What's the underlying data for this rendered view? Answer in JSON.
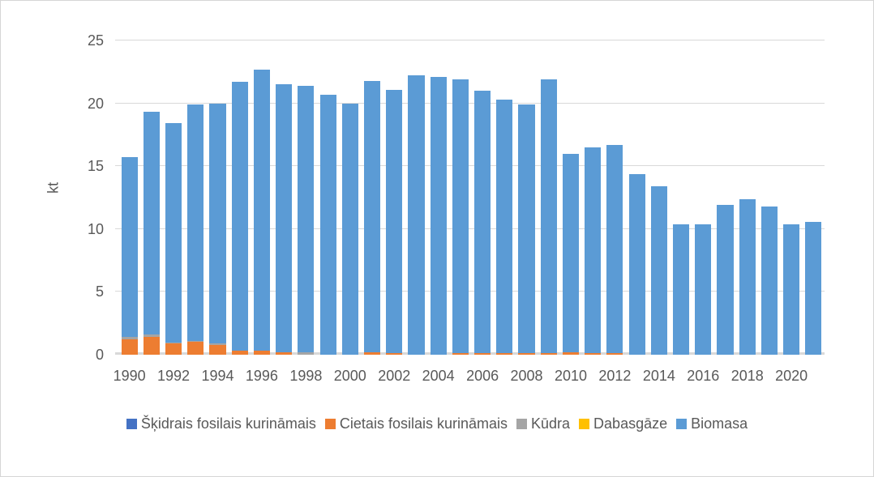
{
  "chart_data": {
    "type": "bar",
    "stacked": true,
    "title": "",
    "xlabel": "",
    "ylabel": "kt",
    "ylim": [
      0,
      25
    ],
    "yticks": [
      0,
      5,
      10,
      15,
      20,
      25
    ],
    "grid": true,
    "legend_position": "bottom",
    "x": [
      1990,
      1991,
      1992,
      1993,
      1994,
      1995,
      1996,
      1997,
      1998,
      1999,
      2000,
      2001,
      2002,
      2003,
      2004,
      2005,
      2006,
      2007,
      2008,
      2009,
      2010,
      2011,
      2012,
      2013,
      2014,
      2015,
      2016,
      2017,
      2018,
      2019,
      2020,
      2021
    ],
    "xtick_shown": [
      "1990",
      "1992",
      "1994",
      "1996",
      "1998",
      "2000",
      "2002",
      "2004",
      "2006",
      "2008",
      "2010",
      "2012",
      "2014",
      "2016",
      "2018",
      "2020"
    ],
    "series": [
      {
        "name": "Šķidrais fosilais kurināmais",
        "color": "#4472C4",
        "values": [
          0,
          0,
          0,
          0,
          0,
          0,
          0,
          0,
          0,
          0,
          0,
          0,
          0,
          0,
          0,
          0,
          0,
          0,
          0,
          0,
          0,
          0,
          0,
          0,
          0,
          0,
          0,
          0,
          0,
          0,
          0,
          0
        ]
      },
      {
        "name": "Cietais fosilais kurināmais",
        "color": "#ED7D31",
        "values": [
          1.2,
          1.4,
          0.9,
          1.0,
          0.8,
          0.3,
          0.3,
          0.2,
          0,
          0,
          0,
          0.2,
          0.1,
          0,
          0,
          0.1,
          0.1,
          0.1,
          0.1,
          0.1,
          0.2,
          0.1,
          0.1,
          0,
          0,
          0,
          0,
          0,
          0,
          0,
          0,
          0
        ]
      },
      {
        "name": "Kūdra",
        "color": "#A5A5A5",
        "values": [
          0.2,
          0.2,
          0.1,
          0.1,
          0.1,
          0,
          0,
          0,
          0.2,
          0,
          0,
          0,
          0,
          0,
          0,
          0,
          0,
          0,
          0,
          0,
          0,
          0,
          0,
          0,
          0,
          0,
          0,
          0,
          0,
          0,
          0,
          0
        ]
      },
      {
        "name": "Dabasgāze",
        "color": "#FFC000",
        "values": [
          0,
          0,
          0,
          0,
          0,
          0,
          0,
          0,
          0,
          0,
          0,
          0,
          0,
          0,
          0,
          0,
          0,
          0,
          0,
          0,
          0,
          0,
          0,
          0,
          0,
          0,
          0,
          0,
          0,
          0,
          0,
          0
        ]
      },
      {
        "name": "Biomasa",
        "color": "#5B9BD5",
        "values": [
          14.3,
          17.7,
          17.4,
          18.8,
          19.1,
          21.4,
          22.4,
          21.3,
          21.2,
          20.7,
          20.0,
          21.6,
          21.0,
          22.2,
          22.1,
          21.8,
          20.9,
          20.2,
          19.8,
          21.8,
          15.8,
          16.4,
          16.6,
          14.4,
          13.4,
          10.4,
          10.4,
          11.9,
          12.4,
          11.8,
          10.4,
          10.6
        ]
      }
    ],
    "totals": [
      15.7,
      19.3,
      18.4,
      19.9,
      20.0,
      21.7,
      22.7,
      21.5,
      21.4,
      20.7,
      20.0,
      21.8,
      21.1,
      22.2,
      22.1,
      21.9,
      21.0,
      20.3,
      19.9,
      21.9,
      16.0,
      16.5,
      16.7,
      14.4,
      13.4,
      10.4,
      10.4,
      11.9,
      12.4,
      11.8,
      10.4,
      10.6
    ]
  },
  "colors": {
    "gridline": "#D9D9D9",
    "axis_line": "#D9D9D9",
    "tick_text": "#595959",
    "frame_border": "#D6D6D6",
    "background": "#FFFFFF"
  }
}
